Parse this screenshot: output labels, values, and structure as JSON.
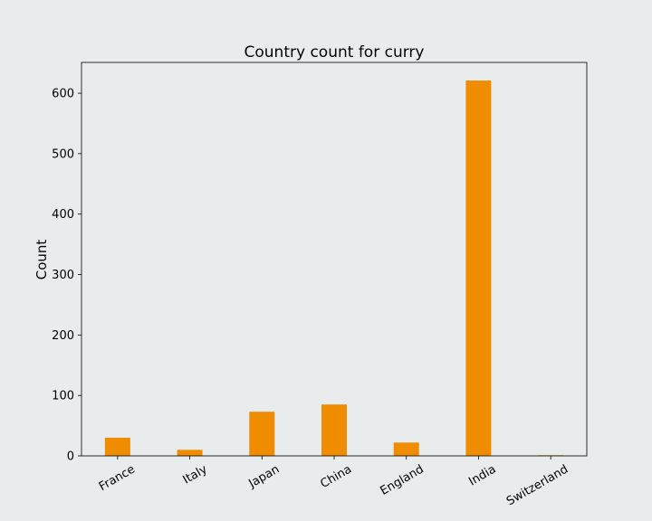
{
  "chart_data": {
    "type": "bar",
    "title": "Country count for curry",
    "xlabel": "",
    "ylabel": "Count",
    "categories": [
      "France",
      "Italy",
      "Japan",
      "China",
      "England",
      "India",
      "Switzerland"
    ],
    "values": [
      30,
      10,
      73,
      85,
      22,
      621,
      1
    ],
    "ylim": [
      0,
      651
    ],
    "yticks": [
      0,
      100,
      200,
      300,
      400,
      500,
      600
    ],
    "grid": false,
    "bar_color": "#f08c00",
    "x_tick_rotation_deg": 30
  }
}
